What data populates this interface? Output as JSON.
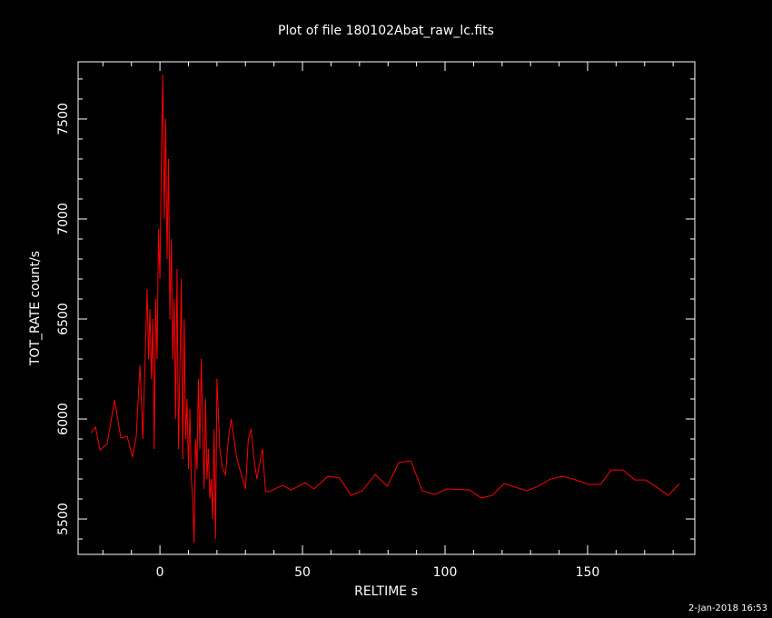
{
  "chart_data": {
    "type": "line",
    "title": "Plot of file 180102Abat_raw_lc.fits",
    "x_label": "RELTIME  s",
    "y_label": "TOT_RATE  count/s",
    "footer": "2-Jan-2018 16:53",
    "background": "#000000",
    "axis_color": "#ffffff",
    "x": [
      -24.2,
      -22.6,
      -21.0,
      -18.5,
      -15.9,
      -13.7,
      -11.5,
      -9.6,
      -8.3,
      -8,
      -7,
      -6,
      -5,
      -4.5,
      -4,
      -3.5,
      -3,
      -2.5,
      -2,
      -1.5,
      -1,
      -0.5,
      0,
      0.5,
      1,
      1.5,
      2,
      2.5,
      3,
      3.5,
      4,
      4.5,
      5,
      5.5,
      6,
      6.5,
      7,
      7.5,
      8,
      8.5,
      9,
      9.5,
      10,
      10.5,
      11,
      11.5,
      12,
      12.5,
      13,
      13.5,
      14,
      14.5,
      15,
      15.5,
      16,
      16.5,
      17,
      17.5,
      18,
      18.5,
      19,
      19.5,
      20,
      21,
      22,
      23,
      24,
      25,
      26,
      27,
      28,
      29,
      30,
      31,
      32,
      33,
      34,
      35,
      36,
      37,
      38.2,
      43,
      46,
      51,
      54,
      59,
      63,
      67,
      71,
      75.5,
      79.7,
      83.8,
      88,
      92,
      96.5,
      100.6,
      108.6,
      112.7,
      116.6,
      120.7,
      128.7,
      132.8,
      137,
      141.4,
      145.9,
      150.3,
      154.5,
      158.3,
      162.4,
      166.6,
      170.4,
      174.2,
      178.3,
      182.2
    ],
    "series": [
      {
        "name": "TOT_RATE",
        "color": "#ff0000",
        "values": [
          5932,
          5959,
          5845,
          5877,
          6095,
          5905,
          5914,
          5809,
          5914,
          6000,
          6270,
          5900,
          6400,
          6650,
          6300,
          6550,
          6200,
          6500,
          5850,
          6600,
          6300,
          6950,
          6700,
          7300,
          7720,
          7000,
          7500,
          6800,
          7300,
          6500,
          6900,
          6300,
          6600,
          6000,
          6750,
          5850,
          6250,
          6700,
          5800,
          6500,
          5900,
          6100,
          5750,
          6050,
          5700,
          5600,
          5380,
          5900,
          5750,
          6200,
          5850,
          6300,
          5950,
          5650,
          6100,
          5700,
          5850,
          5600,
          5700,
          5500,
          5950,
          5400,
          6200,
          5850,
          5750,
          5720,
          5900,
          6000,
          5900,
          5800,
          5750,
          5700,
          5650,
          5900,
          5950,
          5800,
          5700,
          5780,
          5850,
          5640,
          5636,
          5668,
          5645,
          5682,
          5650,
          5714,
          5705,
          5618,
          5641,
          5723,
          5664,
          5782,
          5791,
          5641,
          5623,
          5650,
          5645,
          5605,
          5618,
          5677,
          5641,
          5664,
          5700,
          5714,
          5695,
          5673,
          5673,
          5745,
          5745,
          5695,
          5695,
          5659,
          5618,
          5677
        ]
      }
    ],
    "xlim": [
      -28.7,
      187.6
    ],
    "ylim": [
      5323,
      7786
    ],
    "xticks": [
      0,
      50,
      100,
      150
    ],
    "yticks": [
      5500,
      6000,
      6500,
      7000,
      7500
    ],
    "xminorticks": [
      -20,
      -10,
      10,
      20,
      30,
      40,
      60,
      70,
      80,
      90,
      110,
      120,
      130,
      140,
      160,
      170,
      180
    ],
    "yminorticks": [
      5400,
      5600,
      5700,
      5800,
      5900,
      6100,
      6200,
      6300,
      6400,
      6600,
      6700,
      6800,
      6900,
      7100,
      7200,
      7300,
      7400,
      7600,
      7700
    ]
  }
}
